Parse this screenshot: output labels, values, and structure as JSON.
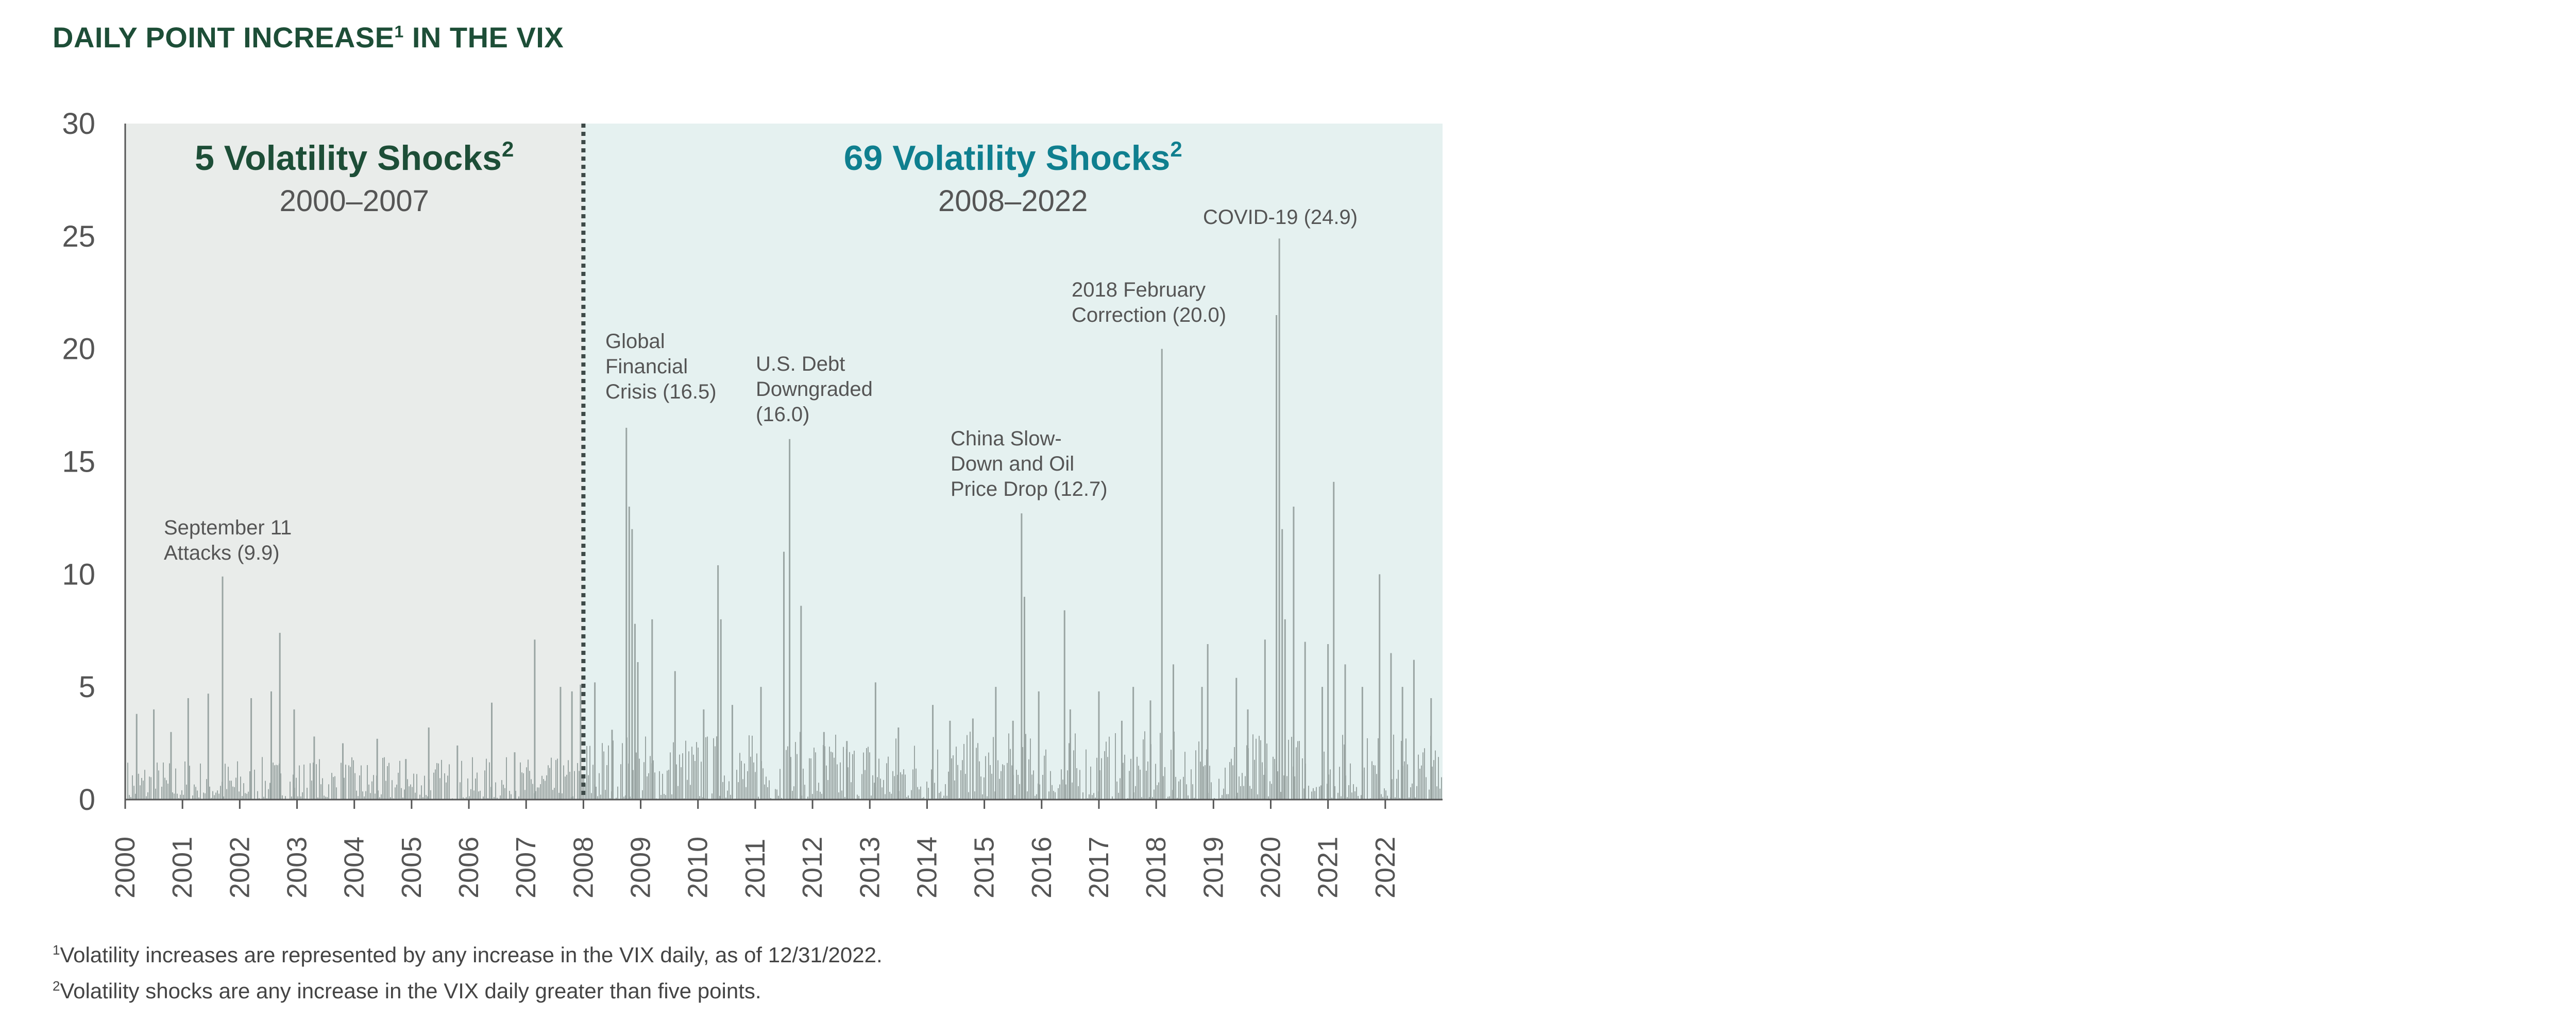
{
  "title": {
    "main": "DAILY POINT INCREASE",
    "sup": "1",
    "rest": " IN THE VIX"
  },
  "colors": {
    "title": "#1d4e37",
    "period1_bg": "#e9ecea",
    "period2_bg": "#e5f1f0",
    "period1_heading": "#1d4e37",
    "period2_heading": "#0f7f8f",
    "bars": "#9aa5a3",
    "axis": "#555555"
  },
  "periods": [
    {
      "heading": "5 Volatility Shocks",
      "sup": "2",
      "range": "2000–2007"
    },
    {
      "heading": "69 Volatility Shocks",
      "sup": "2",
      "range": "2008–2022"
    }
  ],
  "annotations": [
    {
      "lines": [
        "September 11",
        "Attacks (9.9)"
      ],
      "x": 2001.7,
      "y": 9.9
    },
    {
      "lines": [
        "Global",
        "Financial",
        "Crisis (16.5)"
      ],
      "x": 2008.8,
      "y": 16.5
    },
    {
      "lines": [
        "U.S. Debt",
        "Downgraded",
        "(16.0)"
      ],
      "x": 2011.6,
      "y": 16.0
    },
    {
      "lines": [
        "China Slow-",
        "Down and Oil",
        "Price Drop (12.7)"
      ],
      "x": 2015.7,
      "y": 12.7
    },
    {
      "lines": [
        "2018 February",
        "Correction (20.0)"
      ],
      "x": 2018.1,
      "y": 20.0
    },
    {
      "lines": [
        "COVID-19 (24.9)"
      ],
      "x": 2020.2,
      "y": 24.9
    }
  ],
  "footnotes": [
    {
      "sup": "1",
      "text": "Volatility increases are represented by any increase in the VIX daily, as of 12/31/2022."
    },
    {
      "sup": "2",
      "text": "Volatility shocks are any increase in the VIX daily greater than five points."
    }
  ],
  "chart_data": {
    "type": "bar",
    "xlabel": "",
    "ylabel": "",
    "xlim": [
      2000,
      2023
    ],
    "ylim": [
      0,
      30
    ],
    "yticks": [
      0,
      5,
      10,
      15,
      20,
      25,
      30
    ],
    "xtick_labels": [
      "2000",
      "2001",
      "2002",
      "2003",
      "2004",
      "2005",
      "2006",
      "2007",
      "2008",
      "2009",
      "2010",
      "2011",
      "2012",
      "2013",
      "2014",
      "2015",
      "2016",
      "2017",
      "2018",
      "2019",
      "2020",
      "2021",
      "2022"
    ],
    "divider_x": 2008,
    "series": [
      {
        "x": [
          2000.2,
          2000.5,
          2000.8,
          2001.1,
          2001.45,
          2001.7,
          2002.2,
          2002.55,
          2002.7,
          2002.95,
          2003.3,
          2003.8,
          2004.4,
          2004.9,
          2005.3,
          2005.8,
          2006.4,
          2006.8,
          2007.15,
          2007.6,
          2007.8,
          2007.95,
          2008.2,
          2008.5,
          2008.75,
          2008.8,
          2008.85,
          2008.9,
          2008.95,
          2009.2,
          2009.6,
          2010.1,
          2010.35,
          2010.4,
          2010.6,
          2011.1,
          2011.5,
          2011.6,
          2011.8,
          2012.2,
          2012.6,
          2013.1,
          2013.5,
          2014.1,
          2014.4,
          2014.8,
          2015.2,
          2015.5,
          2015.65,
          2015.7,
          2015.95,
          2016.4,
          2016.5,
          2017.0,
          2017.4,
          2017.6,
          2017.9,
          2018.1,
          2018.3,
          2018.8,
          2018.9,
          2019.4,
          2019.6,
          2019.9,
          2020.1,
          2020.15,
          2020.2,
          2020.25,
          2020.4,
          2020.6,
          2020.9,
          2021.0,
          2021.1,
          2021.3,
          2021.6,
          2021.9,
          2022.1,
          2022.3,
          2022.5,
          2022.8
        ],
        "values": [
          3.8,
          4.0,
          3.0,
          4.5,
          4.7,
          9.9,
          4.5,
          4.8,
          7.4,
          4.0,
          2.8,
          2.5,
          2.7,
          1.8,
          3.2,
          2.4,
          4.3,
          2.1,
          7.1,
          5.0,
          4.8,
          5.1,
          5.2,
          3.1,
          16.5,
          13.0,
          12.0,
          7.8,
          6.1,
          8.0,
          5.7,
          4.0,
          10.4,
          8.0,
          4.2,
          5.0,
          11.0,
          16.0,
          8.6,
          3.0,
          2.6,
          5.2,
          3.2,
          4.2,
          3.5,
          3.6,
          5.0,
          3.5,
          12.7,
          9.0,
          4.8,
          8.4,
          4.0,
          4.8,
          3.5,
          5.0,
          4.4,
          20.0,
          6.0,
          5.0,
          6.9,
          5.4,
          4.0,
          7.1,
          21.5,
          24.9,
          12.0,
          8.0,
          13.0,
          7.0,
          5.0,
          6.9,
          14.1,
          6.0,
          5.0,
          10.0,
          6.5,
          5.0,
          6.2,
          4.5
        ]
      }
    ]
  }
}
